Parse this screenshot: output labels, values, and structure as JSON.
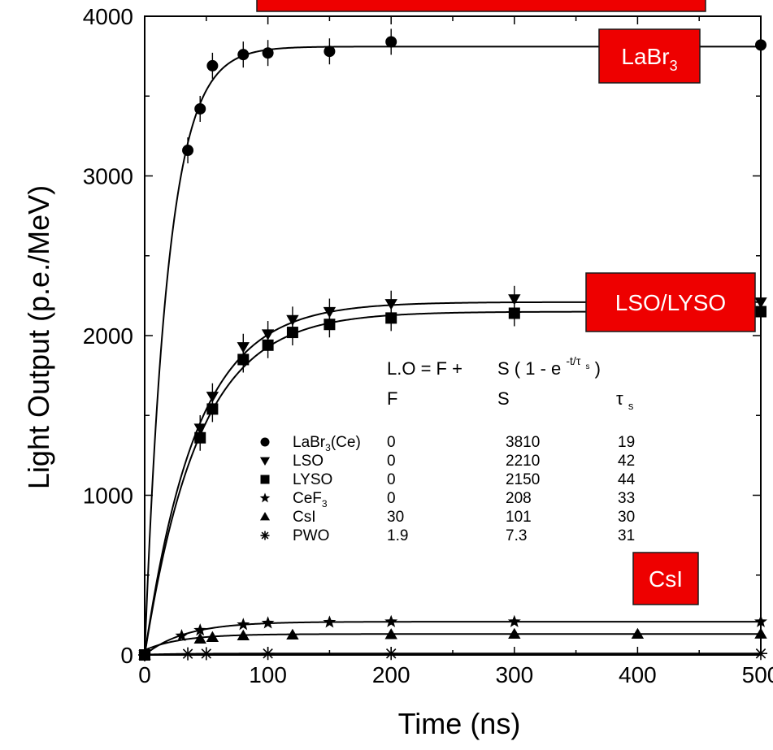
{
  "chart_data": {
    "type": "scatter",
    "xlabel": "Time (ns)",
    "ylabel": "Light Output (p.e./MeV)",
    "xlim": [
      0,
      500
    ],
    "ylim": [
      0,
      4000
    ],
    "x_ticks": [
      "0",
      "100",
      "200",
      "300",
      "400",
      "500"
    ],
    "y_ticks": [
      "0",
      "1000",
      "2000",
      "3000",
      "4000"
    ],
    "grid": false,
    "fit_curves": true,
    "formula": {
      "lhs": "L.O = F +",
      "rhs": "S ( 1 - e",
      "exponent": "-t/τ",
      "exponent_sub": "s",
      "close": " )"
    },
    "legend_columns": {
      "f": "F",
      "s": "S",
      "tau": "τ",
      "tau_sub": "s"
    },
    "series": [
      {
        "name": "LaBr",
        "name_sub": "3",
        "name_suffix": "(Ce)",
        "marker": "circle",
        "F": "0",
        "S": "3810",
        "tau": "19",
        "fit": {
          "F": 0,
          "S": 3810,
          "tau": 19
        },
        "points": [
          {
            "x": 0,
            "y": 0
          },
          {
            "x": 35,
            "y": 3160
          },
          {
            "x": 45,
            "y": 3420
          },
          {
            "x": 55,
            "y": 3690
          },
          {
            "x": 80,
            "y": 3760
          },
          {
            "x": 100,
            "y": 3770
          },
          {
            "x": 150,
            "y": 3780
          },
          {
            "x": 200,
            "y": 3840
          },
          {
            "x": 500,
            "y": 3820
          }
        ]
      },
      {
        "name": "LSO",
        "name_sub": "",
        "name_suffix": "",
        "marker": "triangle-down",
        "F": "0",
        "S": "2210",
        "tau": "42",
        "fit": {
          "F": 0,
          "S": 2210,
          "tau": 42
        },
        "points": [
          {
            "x": 0,
            "y": 0
          },
          {
            "x": 45,
            "y": 1420
          },
          {
            "x": 55,
            "y": 1620
          },
          {
            "x": 80,
            "y": 1930
          },
          {
            "x": 100,
            "y": 2010
          },
          {
            "x": 120,
            "y": 2100
          },
          {
            "x": 150,
            "y": 2150
          },
          {
            "x": 200,
            "y": 2200
          },
          {
            "x": 300,
            "y": 2230
          },
          {
            "x": 500,
            "y": 2210
          }
        ]
      },
      {
        "name": "LYSO",
        "name_sub": "",
        "name_suffix": "",
        "marker": "square",
        "F": "0",
        "S": "2150",
        "tau": "44",
        "fit": {
          "F": 0,
          "S": 2150,
          "tau": 44
        },
        "points": [
          {
            "x": 0,
            "y": 0
          },
          {
            "x": 45,
            "y": 1360
          },
          {
            "x": 55,
            "y": 1540
          },
          {
            "x": 80,
            "y": 1850
          },
          {
            "x": 100,
            "y": 1940
          },
          {
            "x": 120,
            "y": 2020
          },
          {
            "x": 150,
            "y": 2070
          },
          {
            "x": 200,
            "y": 2110
          },
          {
            "x": 300,
            "y": 2140
          },
          {
            "x": 500,
            "y": 2150
          }
        ]
      },
      {
        "name": "CeF",
        "name_sub": "3",
        "name_suffix": "",
        "marker": "star",
        "F": "0",
        "S": "208",
        "tau": "33",
        "fit": {
          "F": 0,
          "S": 208,
          "tau": 33
        },
        "points": [
          {
            "x": 0,
            "y": 0
          },
          {
            "x": 30,
            "y": 120
          },
          {
            "x": 45,
            "y": 155
          },
          {
            "x": 80,
            "y": 190
          },
          {
            "x": 100,
            "y": 200
          },
          {
            "x": 150,
            "y": 205
          },
          {
            "x": 200,
            "y": 208
          },
          {
            "x": 300,
            "y": 208
          },
          {
            "x": 500,
            "y": 208
          }
        ]
      },
      {
        "name": "CsI",
        "name_sub": "",
        "name_suffix": "",
        "marker": "triangle-up",
        "F": "30",
        "S": "101",
        "tau": "30",
        "fit": {
          "F": 30,
          "S": 101,
          "tau": 30
        },
        "points": [
          {
            "x": 0,
            "y": 0
          },
          {
            "x": 45,
            "y": 100
          },
          {
            "x": 55,
            "y": 110
          },
          {
            "x": 80,
            "y": 120
          },
          {
            "x": 120,
            "y": 125
          },
          {
            "x": 200,
            "y": 128
          },
          {
            "x": 300,
            "y": 130
          },
          {
            "x": 400,
            "y": 130
          },
          {
            "x": 500,
            "y": 131
          }
        ]
      },
      {
        "name": "PWO",
        "name_sub": "",
        "name_suffix": "",
        "marker": "asterisk",
        "F": "1.9",
        "S": "7.3",
        "tau": "31",
        "fit": {
          "F": 1.9,
          "S": 7.3,
          "tau": 31
        },
        "points": [
          {
            "x": 0,
            "y": 0
          },
          {
            "x": 35,
            "y": 7
          },
          {
            "x": 50,
            "y": 8
          },
          {
            "x": 100,
            "y": 9
          },
          {
            "x": 200,
            "y": 9
          },
          {
            "x": 500,
            "y": 9
          }
        ]
      }
    ],
    "annotations": [
      {
        "id": "labr3",
        "text": "LaBr",
        "sub": "3",
        "color": "#ee0000"
      },
      {
        "id": "lso-lyso",
        "text": "LSO/LYSO",
        "sub": "",
        "color": "#ee0000"
      },
      {
        "id": "csi",
        "text": "CsI",
        "sub": "",
        "color": "#ee0000"
      },
      {
        "id": "top-banner",
        "text": "",
        "sub": "",
        "color": "#ee0000"
      }
    ]
  }
}
